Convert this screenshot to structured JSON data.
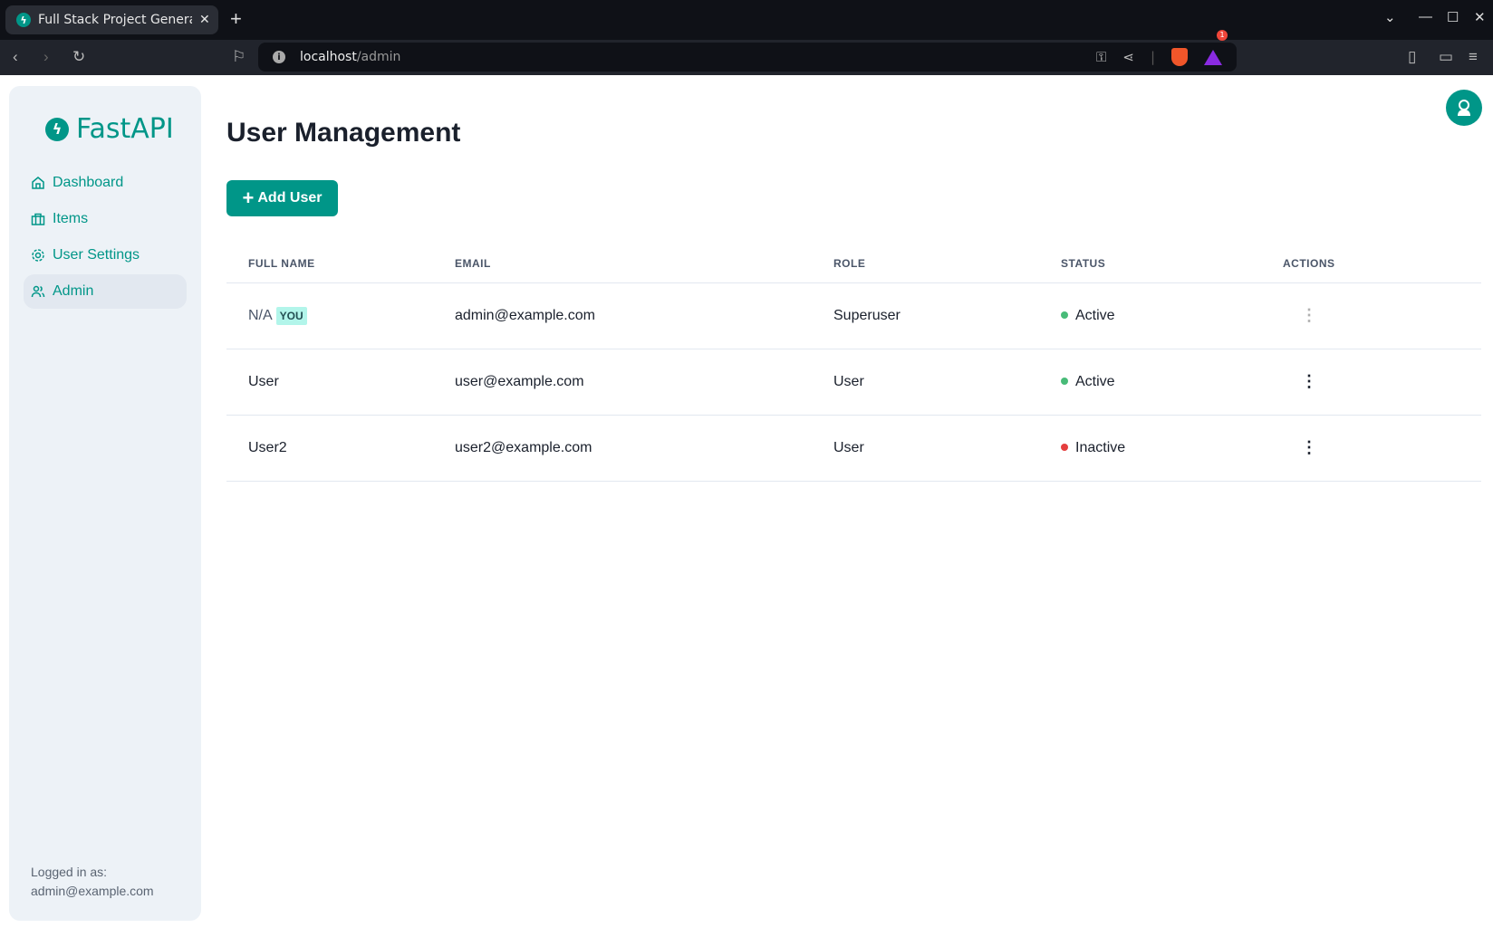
{
  "browser": {
    "tab_title": "Full Stack Project Generator",
    "url_host": "localhost",
    "url_path": "/admin",
    "notification_count": "1"
  },
  "sidebar": {
    "logo": "FastAPI",
    "items": [
      {
        "label": "Dashboard",
        "icon": "home-icon"
      },
      {
        "label": "Items",
        "icon": "briefcase-icon"
      },
      {
        "label": "User Settings",
        "icon": "gear-icon"
      },
      {
        "label": "Admin",
        "icon": "users-icon",
        "active": true
      }
    ],
    "logged_label": "Logged in as:",
    "logged_email": "admin@example.com"
  },
  "main": {
    "title": "User Management",
    "add_button": "Add User",
    "columns": [
      "FULL NAME",
      "EMAIL",
      "ROLE",
      "STATUS",
      "ACTIONS"
    ],
    "rows": [
      {
        "name": "N/A",
        "badge": "YOU",
        "email": "admin@example.com",
        "role": "Superuser",
        "status": "Active",
        "actions_disabled": true
      },
      {
        "name": "User",
        "email": "user@example.com",
        "role": "User",
        "status": "Active"
      },
      {
        "name": "User2",
        "email": "user2@example.com",
        "role": "User",
        "status": "Inactive"
      }
    ]
  },
  "colors": {
    "accent": "#009688",
    "active": "#48bb78",
    "inactive": "#e53e3e"
  }
}
